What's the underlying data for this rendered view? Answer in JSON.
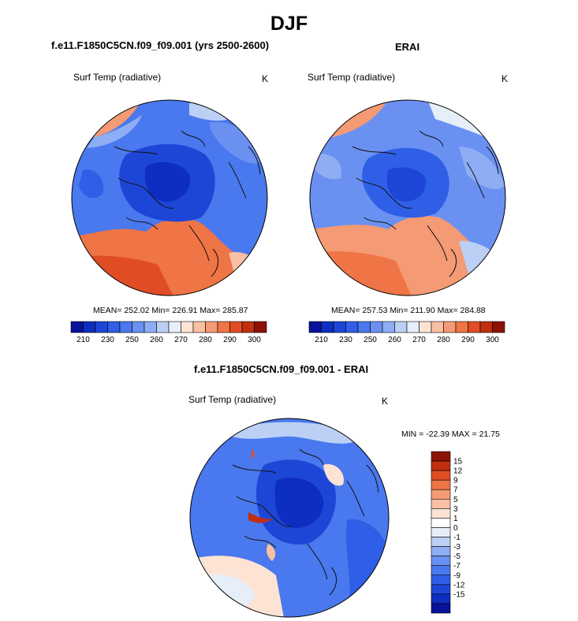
{
  "figure": {
    "title": "DJF"
  },
  "chart_data": [
    {
      "type": "heatmap",
      "projection": "north polar stereographic",
      "title": "f.e11.F1850C5CN.f09_f09.001 (yrs 2500-2600)",
      "variable": "Surf Temp (radiative)",
      "units": "K",
      "stats": {
        "mean": "252.02",
        "min": "226.91",
        "max": "285.87"
      },
      "stats_text": "MEAN= 252.02  Min= 226.91  Max= 285.87",
      "colorbar": {
        "levels": [
          210,
          220,
          230,
          240,
          250,
          255,
          260,
          265,
          270,
          275,
          280,
          285,
          290,
          295,
          300
        ],
        "tick_labels": [
          "210",
          "230",
          "250",
          "260",
          "270",
          "280",
          "290",
          "300"
        ],
        "colors": [
          "#08129b",
          "#0d2ec0",
          "#1e46d6",
          "#2f5fe6",
          "#4a78ee",
          "#6a91f2",
          "#8fadf4",
          "#bcd0f6",
          "#e6eefa",
          "#fde3d4",
          "#f9c0a3",
          "#f49a74",
          "#ef7446",
          "#e04d25",
          "#c0300f",
          "#8c1304"
        ]
      }
    },
    {
      "type": "heatmap",
      "projection": "north polar stereographic",
      "title": "ERAI",
      "variable": "Surf Temp (radiative)",
      "units": "K",
      "stats": {
        "mean": "257.53",
        "min": "211.90",
        "max": "284.88"
      },
      "stats_text": "MEAN= 257.53  Min= 211.90  Max= 284.88",
      "colorbar": {
        "levels": [
          210,
          220,
          230,
          240,
          250,
          255,
          260,
          265,
          270,
          275,
          280,
          285,
          290,
          295,
          300
        ],
        "tick_labels": [
          "210",
          "230",
          "250",
          "260",
          "270",
          "280",
          "290",
          "300"
        ],
        "colors": [
          "#08129b",
          "#0d2ec0",
          "#1e46d6",
          "#2f5fe6",
          "#4a78ee",
          "#6a91f2",
          "#8fadf4",
          "#bcd0f6",
          "#e6eefa",
          "#fde3d4",
          "#f9c0a3",
          "#f49a74",
          "#ef7446",
          "#e04d25",
          "#c0300f",
          "#8c1304"
        ]
      }
    },
    {
      "type": "heatmap",
      "projection": "north polar stereographic",
      "title": "f.e11.F1850C5CN.f09_f09.001 - ERAI",
      "variable": "Surf Temp (radiative)",
      "units": "K",
      "stats": {
        "min": "-22.39",
        "max": "21.75"
      },
      "stats_text": "MIN = -22.39 MAX =  21.75",
      "colorbar": {
        "orientation": "vertical",
        "levels": [
          -15,
          -12,
          -9,
          -7,
          -5,
          -3,
          -1,
          0,
          1,
          3,
          5,
          7,
          9,
          12,
          15
        ],
        "tick_labels": [
          "15",
          "12",
          "9",
          "7",
          "5",
          "3",
          "1",
          "0",
          "-1",
          "-3",
          "-5",
          "-7",
          "-9",
          "-12",
          "-15"
        ],
        "colors": [
          "#8c1304",
          "#c0300f",
          "#e04d25",
          "#ef7446",
          "#f49a74",
          "#f9c0a3",
          "#fde3d4",
          "#ffffff",
          "#e6eefa",
          "#bcd0f6",
          "#8fadf4",
          "#6a91f2",
          "#4a78ee",
          "#2f5fe6",
          "#1e46d6",
          "#0d2ec0",
          "#08129b"
        ]
      }
    }
  ]
}
